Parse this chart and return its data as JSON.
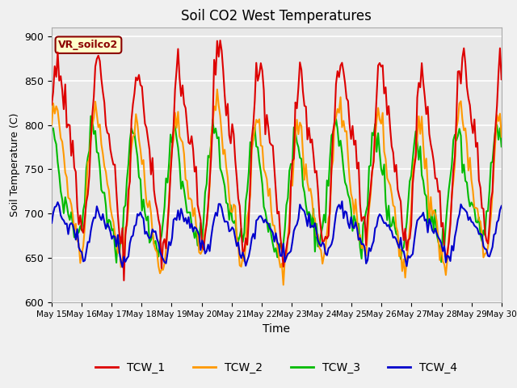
{
  "title": "Soil CO2 West Temperatures",
  "xlabel": "Time",
  "ylabel": "Soil Temperature (C)",
  "annotation": "VR_soilco2",
  "ylim": [
    600,
    910
  ],
  "yticks": [
    600,
    650,
    700,
    750,
    800,
    850,
    900
  ],
  "series_colors": {
    "TCW_1": "#dd0000",
    "TCW_2": "#ff9900",
    "TCW_3": "#00bb00",
    "TCW_4": "#0000cc"
  },
  "legend_labels": [
    "TCW_1",
    "TCW_2",
    "TCW_3",
    "TCW_4"
  ],
  "plot_bg_color": "#e8e8e8",
  "fig_bg_color": "#f0f0f0",
  "grid_color": "#ffffff",
  "x_tick_labels": [
    "May 15",
    "May 16",
    "May 17",
    "May 18",
    "May 19",
    "May 20",
    "May 21",
    "May 22",
    "May 23",
    "May 24",
    "May 25",
    "May 26",
    "May 27",
    "May 28",
    "May 29",
    "May 30"
  ],
  "n_points": 300,
  "seed": 12
}
